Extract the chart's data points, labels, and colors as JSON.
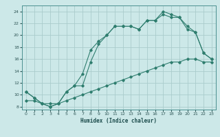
{
  "xlabel": "Humidex (Indice chaleur)",
  "bg_color": "#cce8e8",
  "grid_color": "#aacccc",
  "line_color": "#2e7d6e",
  "xlim": [
    -0.5,
    23.5
  ],
  "ylim": [
    7.5,
    25.0
  ],
  "xticks": [
    0,
    1,
    2,
    3,
    4,
    5,
    6,
    7,
    8,
    9,
    10,
    11,
    12,
    13,
    14,
    15,
    16,
    17,
    18,
    19,
    20,
    21,
    22,
    23
  ],
  "yticks": [
    8,
    10,
    12,
    14,
    16,
    18,
    20,
    22,
    24
  ],
  "line1_x": [
    0,
    1,
    2,
    3,
    4,
    5,
    6,
    7,
    8,
    9,
    10,
    11,
    12,
    13,
    14,
    15,
    16,
    17,
    18,
    19,
    20,
    21,
    22,
    23
  ],
  "line1_y": [
    10.5,
    9.5,
    8.5,
    8.0,
    8.5,
    10.5,
    11.5,
    13.5,
    17.5,
    19.0,
    20.0,
    21.5,
    21.5,
    21.5,
    21.0,
    22.5,
    22.5,
    24.0,
    23.5,
    23.0,
    21.0,
    20.5,
    17.0,
    16.0
  ],
  "line2_x": [
    0,
    1,
    2,
    3,
    4,
    5,
    6,
    7,
    8,
    9,
    10,
    11,
    12,
    13,
    14,
    15,
    16,
    17,
    18,
    19,
    20,
    21,
    22,
    23
  ],
  "line2_y": [
    10.5,
    9.5,
    8.5,
    8.0,
    8.5,
    10.5,
    11.5,
    11.5,
    15.5,
    18.5,
    20.0,
    21.5,
    21.5,
    21.5,
    21.0,
    22.5,
    22.5,
    23.5,
    23.0,
    23.0,
    21.5,
    20.5,
    17.0,
    16.0
  ],
  "line3_x": [
    0,
    1,
    2,
    3,
    4,
    5,
    6,
    7,
    8,
    9,
    10,
    11,
    12,
    13,
    14,
    15,
    16,
    17,
    18,
    19,
    20,
    21,
    22,
    23
  ],
  "line3_y": [
    9.0,
    9.0,
    8.5,
    8.5,
    8.5,
    9.0,
    9.5,
    10.0,
    10.5,
    11.0,
    11.5,
    12.0,
    12.5,
    13.0,
    13.5,
    14.0,
    14.5,
    15.0,
    15.5,
    15.5,
    16.0,
    16.0,
    15.5,
    15.5
  ]
}
